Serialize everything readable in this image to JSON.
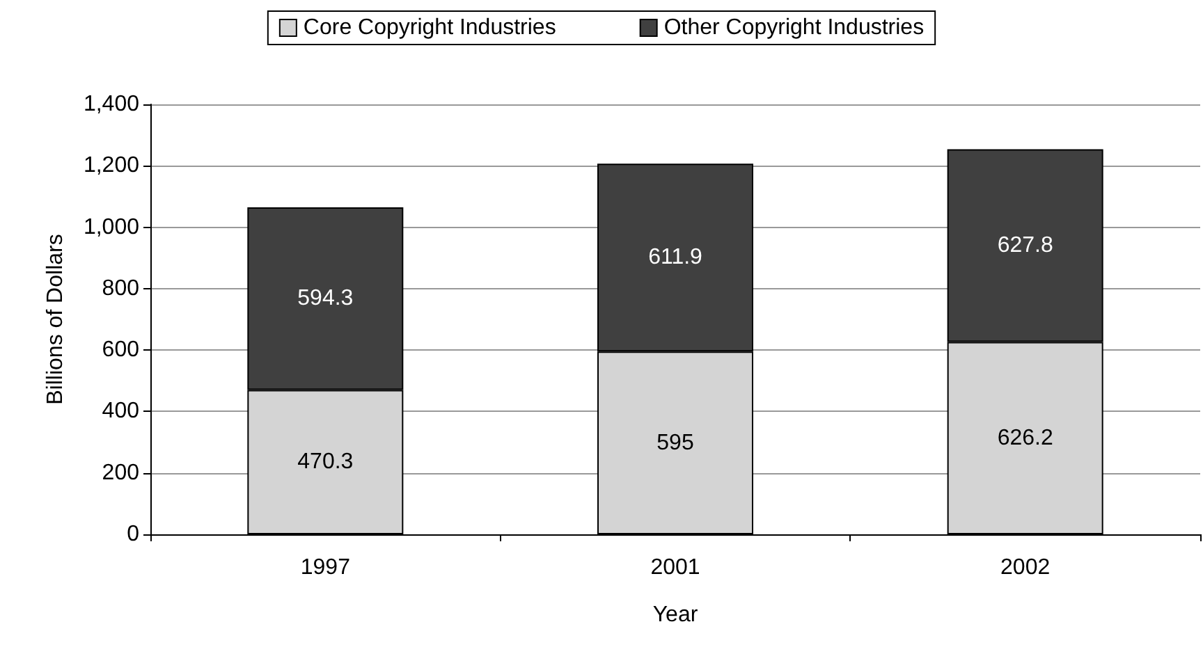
{
  "chart_data": {
    "type": "bar",
    "stacked": true,
    "xlabel": "Year",
    "ylabel": "Billions of Dollars",
    "categories": [
      "1997",
      "2001",
      "2002"
    ],
    "series": [
      {
        "name": "Core Copyright Industries",
        "color": "#d4d4d4",
        "values": [
          470.3,
          595,
          626.2
        ]
      },
      {
        "name": "Other Copyright Industries",
        "color": "#404040",
        "values": [
          594.3,
          611.9,
          627.8
        ]
      }
    ],
    "ylim": [
      0,
      1400
    ],
    "yticks": [
      0,
      {
        "value": 200,
        "label": "200"
      },
      {
        "value": 400,
        "label": "400"
      },
      {
        "value": 600,
        "label": "600"
      },
      {
        "value": 800,
        "label": "800"
      },
      {
        "value": 1000,
        "label": "1,000"
      },
      {
        "value": 1200,
        "label": "1,200"
      },
      {
        "value": 1400,
        "label": "1,400"
      }
    ],
    "grid": "y",
    "legend": "top",
    "data_labels": true
  }
}
